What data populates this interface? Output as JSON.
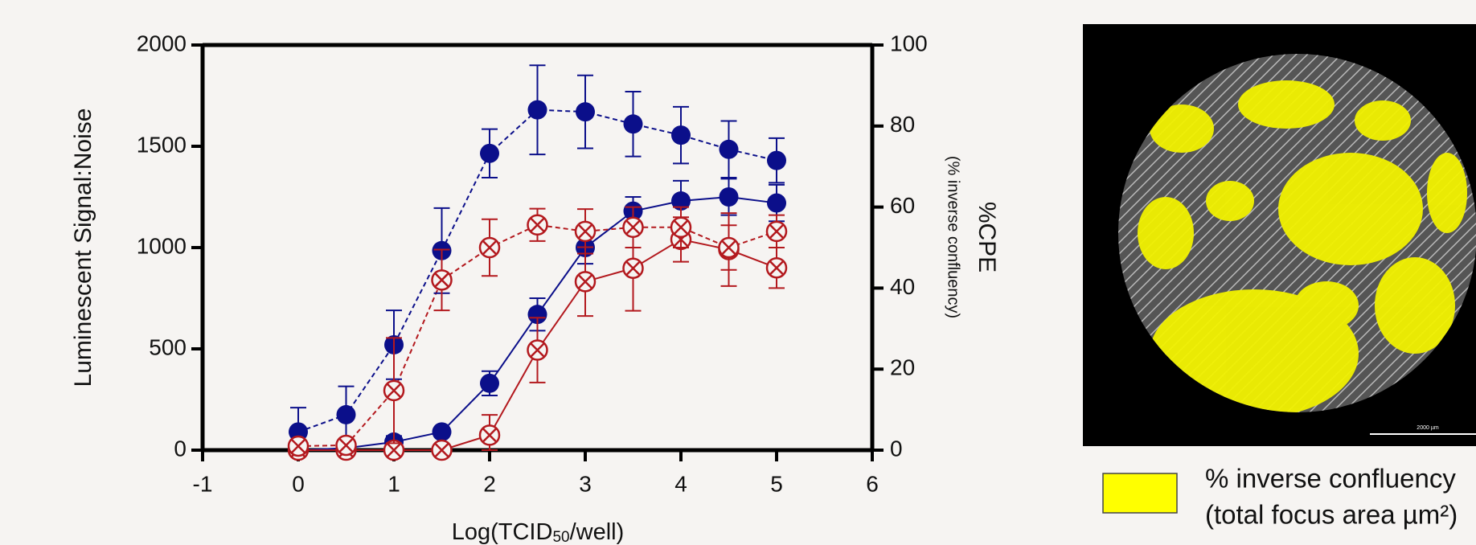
{
  "chart_data": {
    "type": "line",
    "xlabel": [
      "Log(TCID",
      "50",
      "/well)"
    ],
    "ylabel": "Luminescent Signal:Noise",
    "y2label": "%CPE",
    "y2sublabel": "(% inverse confluency)",
    "xlim": [
      -1,
      6
    ],
    "xticks": [
      -1,
      0,
      1,
      2,
      3,
      4,
      5,
      6
    ],
    "ylim": [
      0,
      2000
    ],
    "yticks": [
      0,
      500,
      1000,
      1500,
      2000
    ],
    "y2lim": [
      0,
      100
    ],
    "y2ticks": [
      0,
      20,
      40,
      60,
      80,
      100
    ],
    "x": [
      0,
      0.5,
      1,
      1.5,
      2,
      2.5,
      3,
      3.5,
      4,
      4.5,
      5
    ],
    "series": [
      {
        "color": "#0b0f8a",
        "dash": false,
        "marker": "filled",
        "values": [
          0,
          10,
          40,
          90,
          330,
          670,
          1000,
          1180,
          1230,
          1250,
          1220
        ],
        "errors": [
          20,
          20,
          30,
          20,
          60,
          80,
          80,
          70,
          100,
          90,
          90
        ]
      },
      {
        "color": "#0b0f8a",
        "dash": true,
        "marker": "filled",
        "values": [
          90,
          175,
          520,
          985,
          1465,
          1680,
          1670,
          1610,
          1555,
          1485,
          1430
        ],
        "errors": [
          120,
          140,
          170,
          210,
          120,
          220,
          180,
          160,
          140,
          140,
          110
        ]
      },
      {
        "color": "#b3191e",
        "dash": false,
        "marker": "cross",
        "axis": "y2",
        "values": [
          0,
          0,
          0,
          0,
          3.7,
          24.7,
          41.6,
          44.9,
          52,
          49.5,
          45
        ],
        "errors": [
          0.5,
          0.5,
          0.5,
          0.5,
          5,
          8,
          8.5,
          10.5,
          5.5,
          9,
          5
        ]
      },
      {
        "color": "#b3191e",
        "dash": true,
        "marker": "cross",
        "axis": "y2",
        "values": [
          1,
          1.2,
          14.7,
          42,
          50,
          55.6,
          54,
          55,
          55,
          50,
          54
        ],
        "errors": [
          0.5,
          1,
          13,
          7.5,
          7,
          4,
          5.5,
          5,
          5,
          5.5,
          4
        ]
      }
    ],
    "image": {
      "scale_label": "2000 µm",
      "legend": [
        "% inverse confluency",
        "(total focus area µm²)"
      ],
      "legend_color": "#ffff00"
    }
  }
}
